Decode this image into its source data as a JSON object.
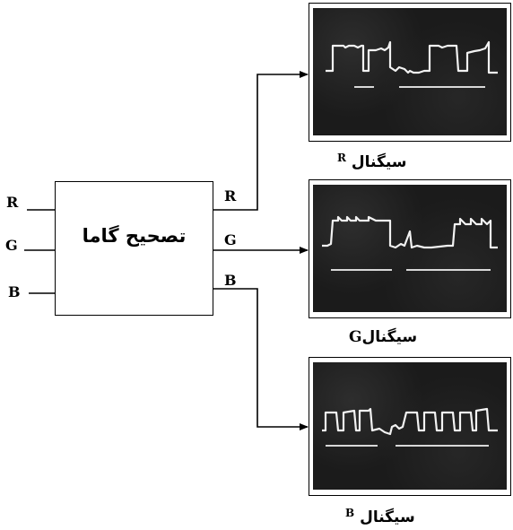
{
  "diagram": {
    "inputs": [
      "R",
      "G",
      "B"
    ],
    "block_label": "تصحیح گاما",
    "outputs": [
      "R",
      "G",
      "B"
    ],
    "panels": [
      {
        "caption_word": "سیگنال",
        "caption_channel": "R",
        "waveform": "pulse-wide-stepped"
      },
      {
        "caption_word": "سیگنال",
        "caption_channel": "G",
        "waveform": "pulse-wide-stepped"
      },
      {
        "caption_word": "سیگنال",
        "caption_channel": "B",
        "waveform": "pulse-train"
      }
    ]
  },
  "colors": {
    "line": "#000000",
    "screen": "#1b1b1b",
    "trace": "#f2f2f2"
  }
}
